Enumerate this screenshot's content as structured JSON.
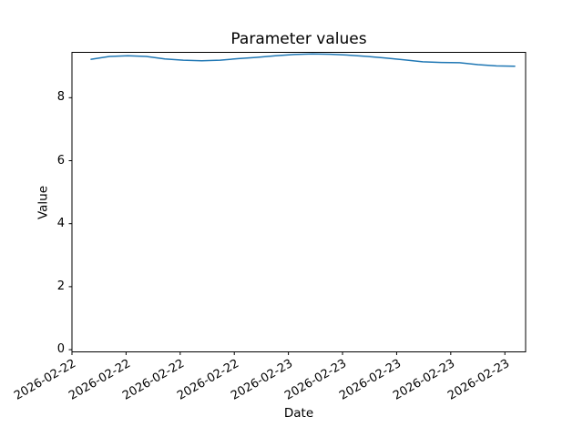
{
  "figure": {
    "background": "#ffffff",
    "text_color": "#000000"
  },
  "chart_data": {
    "type": "line",
    "title": "Parameter values",
    "xlabel": "Date",
    "ylabel": "Value",
    "grid": false,
    "legend": "none",
    "x_axis": {
      "tick_hours": [
        0,
        3,
        6,
        9,
        12,
        15,
        18,
        21,
        24
      ],
      "tick_labels": [
        "2026-02-22",
        "2026-02-22",
        "2026-02-22",
        "2026-02-22",
        "2026-02-23",
        "2026-02-23",
        "2026-02-23",
        "2026-02-23",
        "2026-02-23"
      ],
      "xlim_hours": [
        0,
        25.15
      ],
      "label_rotation_deg": 30
    },
    "y_axis": {
      "tick_values": [
        0,
        2,
        4,
        6,
        8
      ],
      "tick_labels": [
        "0",
        "2",
        "4",
        "6",
        "8"
      ],
      "ylim": [
        -0.07,
        9.44
      ]
    },
    "series": [
      {
        "name": "parameter-values",
        "color": "#1f77b4",
        "x_hours": [
          1.06,
          2.08,
          3.1,
          4.12,
          5.15,
          6.17,
          7.19,
          8.21,
          9.23,
          10.25,
          11.28,
          12.3,
          13.32,
          14.34,
          15.36,
          16.38,
          17.4,
          18.43,
          19.45,
          20.47,
          21.49,
          22.51,
          23.53,
          24.55
        ],
        "values": [
          9.22,
          9.31,
          9.33,
          9.31,
          9.23,
          9.19,
          9.17,
          9.19,
          9.24,
          9.28,
          9.33,
          9.37,
          9.39,
          9.38,
          9.35,
          9.31,
          9.26,
          9.2,
          9.14,
          9.12,
          9.11,
          9.05,
          9.01,
          9.0
        ]
      }
    ]
  }
}
